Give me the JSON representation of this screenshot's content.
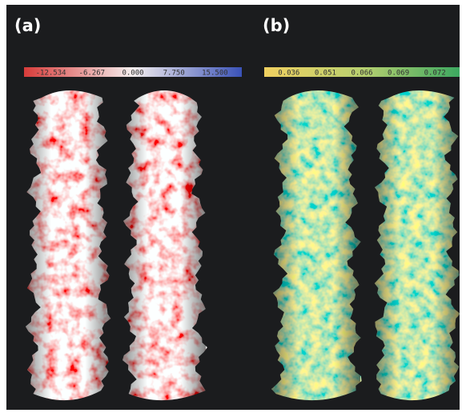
{
  "panels": [
    {
      "label": "(a)",
      "colorbar": {
        "labels": [
          "-12.534",
          "-6.267",
          "0.000",
          "7.750",
          "15.500"
        ]
      }
    },
    {
      "label": "(b)",
      "colorbar": {
        "labels": [
          "0.036",
          "0.051",
          "0.066",
          "0.069",
          "0.072"
        ]
      }
    }
  ]
}
